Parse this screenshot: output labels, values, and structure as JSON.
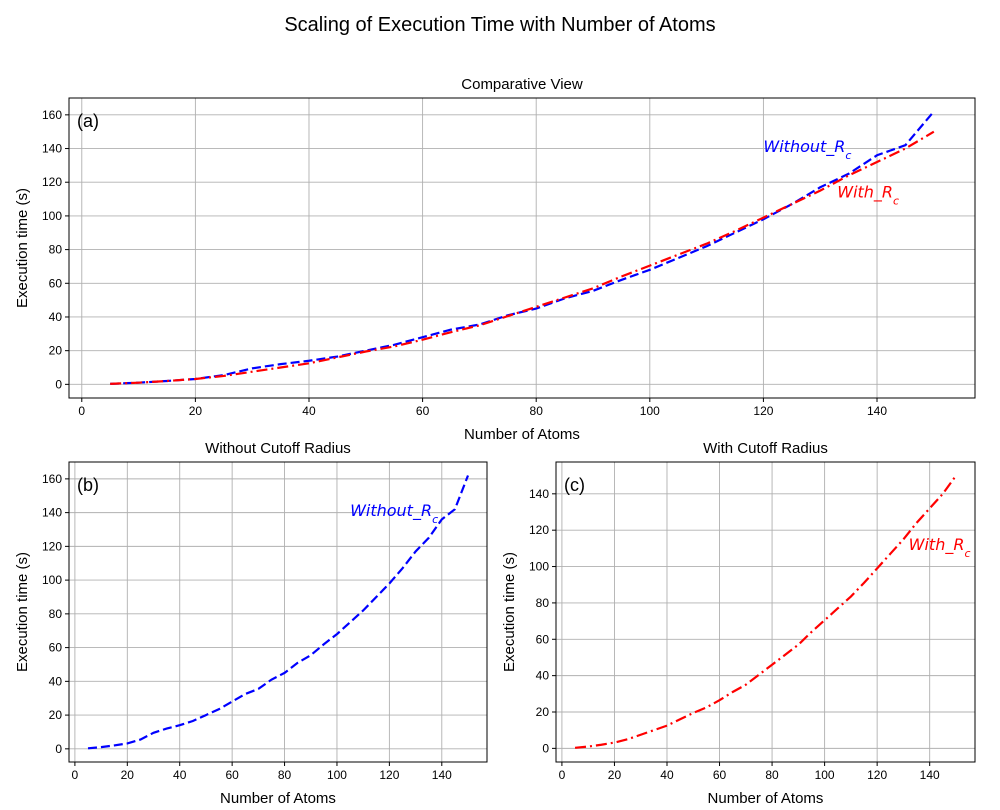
{
  "figure": {
    "title": "Scaling of Execution Time with Number of Atoms"
  },
  "colors": {
    "without": "#0000ff",
    "with": "#ff0000",
    "grid": "#b0b0b0"
  },
  "chart_data": [
    {
      "type": "line",
      "panel": "(a)",
      "title": "Comparative View",
      "xlabel": "Number of Atoms",
      "ylabel": "Execution time (s)",
      "xlim": [
        -2.25,
        157.25
      ],
      "ylim": [
        -8.1,
        170.0
      ],
      "xticks": [
        0,
        20,
        40,
        60,
        80,
        100,
        120,
        140
      ],
      "yticks": [
        0,
        20,
        40,
        60,
        80,
        100,
        120,
        140,
        160
      ],
      "grid": true,
      "series": [
        {
          "name": "Without_R_c",
          "style": "dashed",
          "color": "#0000ff",
          "x": [
            5,
            10,
            15,
            20,
            25,
            30,
            35,
            40,
            45,
            50,
            55,
            60,
            65,
            70,
            75,
            80,
            85,
            90,
            95,
            100,
            105,
            110,
            115,
            120,
            125,
            130,
            135,
            140,
            145,
            150
          ],
          "y": [
            0.3,
            1.0,
            2.0,
            3.2,
            5.5,
            9.5,
            12.0,
            14.0,
            16.5,
            20.0,
            23.5,
            28.0,
            32.5,
            35.5,
            41.0,
            45.0,
            51.0,
            55.5,
            62.0,
            68.0,
            75.0,
            82.0,
            90.0,
            98.0,
            107.0,
            117.0,
            125.0,
            136.0,
            142.0,
            162.0
          ]
        },
        {
          "name": "With_R_c",
          "style": "dashdot",
          "color": "#ff0000",
          "x": [
            5,
            10,
            15,
            20,
            25,
            30,
            35,
            40,
            45,
            50,
            55,
            60,
            65,
            70,
            75,
            80,
            85,
            90,
            95,
            100,
            105,
            110,
            115,
            120,
            125,
            130,
            135,
            140,
            145,
            150
          ],
          "y": [
            0.3,
            1.0,
            2.0,
            3.2,
            5.0,
            7.5,
            10.0,
            12.5,
            16.0,
            19.5,
            22.5,
            26.5,
            31.0,
            35.0,
            40.5,
            46.0,
            51.5,
            57.0,
            64.0,
            70.5,
            77.0,
            83.5,
            91.0,
            99.0,
            107.0,
            115.0,
            124.0,
            132.0,
            140.0,
            150.0
          ]
        }
      ],
      "annotations": [
        {
          "text": "Without_R_c",
          "x": 120,
          "y": 138,
          "color": "#0000ff"
        },
        {
          "text": "With_R_c",
          "x": 133,
          "y": 111,
          "color": "#ff0000"
        }
      ]
    },
    {
      "type": "line",
      "panel": "(b)",
      "title": "Without Cutoff Radius",
      "xlabel": "Number of Atoms",
      "ylabel": "Execution time (s)",
      "xlim": [
        -2.25,
        157.25
      ],
      "ylim": [
        -7.8,
        170.0
      ],
      "xticks": [
        0,
        20,
        40,
        60,
        80,
        100,
        120,
        140
      ],
      "yticks": [
        0,
        20,
        40,
        60,
        80,
        100,
        120,
        140,
        160
      ],
      "grid": true,
      "series": [
        {
          "name": "Without_R_c",
          "style": "dashed",
          "color": "#0000ff",
          "x": [
            5,
            10,
            15,
            20,
            25,
            30,
            35,
            40,
            45,
            50,
            55,
            60,
            65,
            70,
            75,
            80,
            85,
            90,
            95,
            100,
            105,
            110,
            115,
            120,
            125,
            130,
            135,
            140,
            145,
            150
          ],
          "y": [
            0.3,
            1.0,
            2.0,
            3.2,
            5.5,
            9.5,
            12.0,
            14.0,
            16.5,
            20.0,
            23.5,
            28.0,
            32.5,
            35.5,
            41.0,
            45.0,
            51.0,
            55.5,
            62.0,
            68.0,
            75.0,
            82.0,
            90.0,
            98.0,
            107.0,
            117.0,
            125.0,
            136.0,
            142.0,
            162.0
          ]
        }
      ],
      "annotations": [
        {
          "text": "Without_R_c",
          "x": 105,
          "y": 138,
          "color": "#0000ff"
        }
      ]
    },
    {
      "type": "line",
      "panel": "(c)",
      "title": "With Cutoff Radius",
      "xlabel": "Number of Atoms",
      "ylabel": "Execution time (s)",
      "xlim": [
        -2.25,
        157.25
      ],
      "ylim": [
        -7.5,
        157.5
      ],
      "xticks": [
        0,
        20,
        40,
        60,
        80,
        100,
        120,
        140
      ],
      "yticks": [
        0,
        20,
        40,
        60,
        80,
        100,
        120,
        140
      ],
      "grid": true,
      "series": [
        {
          "name": "With_R_c",
          "style": "dashdot",
          "color": "#ff0000",
          "x": [
            5,
            10,
            15,
            20,
            25,
            30,
            35,
            40,
            45,
            50,
            55,
            60,
            65,
            70,
            75,
            80,
            85,
            90,
            95,
            100,
            105,
            110,
            115,
            120,
            125,
            130,
            135,
            140,
            145,
            150
          ],
          "y": [
            0.3,
            1.0,
            2.0,
            3.2,
            5.0,
            7.5,
            10.0,
            12.5,
            16.0,
            19.5,
            22.5,
            26.5,
            31.0,
            35.0,
            40.5,
            46.0,
            51.5,
            57.0,
            64.0,
            70.5,
            77.0,
            83.5,
            91.0,
            99.0,
            107.0,
            115.0,
            124.0,
            132.0,
            140.0,
            150.0
          ]
        }
      ],
      "annotations": [
        {
          "text": "With_R_c",
          "x": 132,
          "y": 109,
          "color": "#ff0000"
        }
      ]
    }
  ]
}
